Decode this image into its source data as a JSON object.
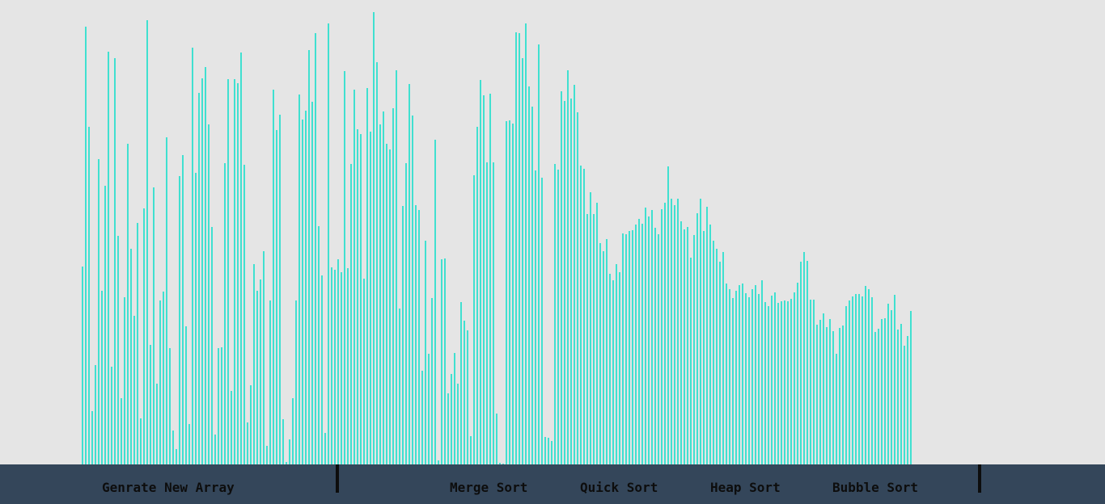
{
  "colors": {
    "background": "#e5e5e5",
    "bar": "#40e0d0",
    "toolbar": "#34465a",
    "button_text": "#0d0d0d"
  },
  "chart_data": {
    "type": "bar",
    "ylim": [
      0,
      1000
    ],
    "values": [
      432,
      957,
      739,
      116,
      217,
      667,
      380,
      610,
      903,
      214,
      889,
      500,
      145,
      365,
      702,
      471,
      325,
      529,
      101,
      560,
      971,
      262,
      606,
      176,
      358,
      378,
      716,
      255,
      74,
      34,
      631,
      676,
      303,
      89,
      912,
      637,
      813,
      844,
      869,
      743,
      519,
      65,
      255,
      257,
      659,
      843,
      160,
      842,
      834,
      901,
      655,
      91,
      174,
      438,
      379,
      404,
      466,
      40,
      358,
      820,
      731,
      765,
      99,
      6,
      54,
      145,
      359,
      810,
      754,
      774,
      906,
      794,
      944,
      522,
      414,
      69,
      964,
      431,
      425,
      449,
      420,
      861,
      430,
      658,
      820,
      734,
      723,
      406,
      824,
      728,
      990,
      880,
      743,
      772,
      701,
      689,
      780,
      863,
      341,
      565,
      659,
      832,
      764,
      568,
      556,
      205,
      490,
      242,
      364,
      710,
      9,
      448,
      450,
      156,
      197,
      244,
      176,
      355,
      315,
      293,
      62,
      633,
      738,
      841,
      807,
      660,
      811,
      660,
      112,
      4,
      1,
      750,
      752,
      745,
      946,
      944,
      888,
      965,
      826,
      783,
      643,
      918,
      627,
      60,
      58,
      52,
      658,
      644,
      816,
      795,
      862,
      800,
      830,
      771,
      654,
      647,
      547,
      596,
      548,
      572,
      484,
      467,
      493,
      417,
      402,
      439,
      421,
      506,
      503,
      510,
      513,
      524,
      537,
      527,
      561,
      542,
      557,
      517,
      504,
      559,
      572,
      652,
      582,
      567,
      581,
      531,
      514,
      520,
      452,
      502,
      550,
      582,
      510,
      563,
      525,
      489,
      472,
      443,
      465,
      396,
      384,
      364,
      379,
      393,
      396,
      374,
      366,
      384,
      392,
      373,
      402,
      356,
      347,
      370,
      377,
      354,
      357,
      359,
      357,
      362,
      376,
      397,
      444,
      465,
      445,
      360,
      361,
      305,
      316,
      330,
      301,
      318,
      291,
      242,
      299,
      304,
      347,
      359,
      368,
      372,
      373,
      368,
      391,
      384,
      365,
      289,
      296,
      318,
      319,
      351,
      337,
      371,
      295,
      308,
      259,
      281,
      335
    ]
  },
  "buttons": {
    "generate": "Genrate New Array",
    "merge": "Merge Sort",
    "quick": "Quick Sort",
    "heap": "Heap Sort",
    "bubble": "Bubble Sort"
  }
}
